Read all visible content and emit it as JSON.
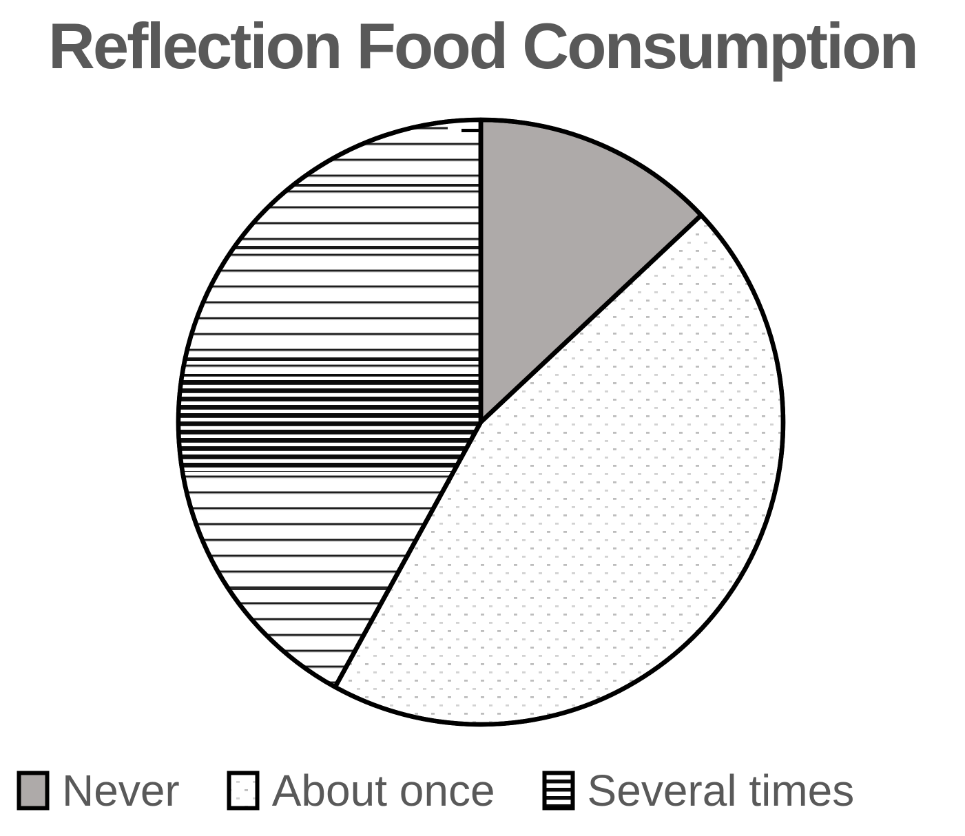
{
  "title": "Reflection Food Consumption",
  "chart_data": {
    "type": "pie",
    "title": "Reflection Food Consumption",
    "categories": [
      "Never",
      "About once",
      "Several times"
    ],
    "values": [
      13,
      45,
      42
    ],
    "values_unit": "percent (estimated from slice angles)",
    "start_angle_deg": 0,
    "direction": "clockwise",
    "legend_position": "bottom",
    "slice_styles": [
      {
        "label": "Never",
        "fill_type": "solid",
        "color": "#aeaaa9"
      },
      {
        "label": "About once",
        "fill_type": "pattern-dots",
        "background": "#ffffff"
      },
      {
        "label": "Several times",
        "fill_type": "pattern-hlines",
        "background": "#ffffff"
      }
    ],
    "outline_color": "#000000"
  },
  "legend": {
    "items": [
      {
        "label": "Never",
        "swatch": "solid-gray"
      },
      {
        "label": "About once",
        "swatch": "dotted"
      },
      {
        "label": "Several times",
        "swatch": "horizontal-lines"
      }
    ]
  },
  "colors": {
    "title_text": "#595959",
    "legend_text": "#595959",
    "never_gray": "#aeaaa9",
    "outline": "#000000"
  }
}
